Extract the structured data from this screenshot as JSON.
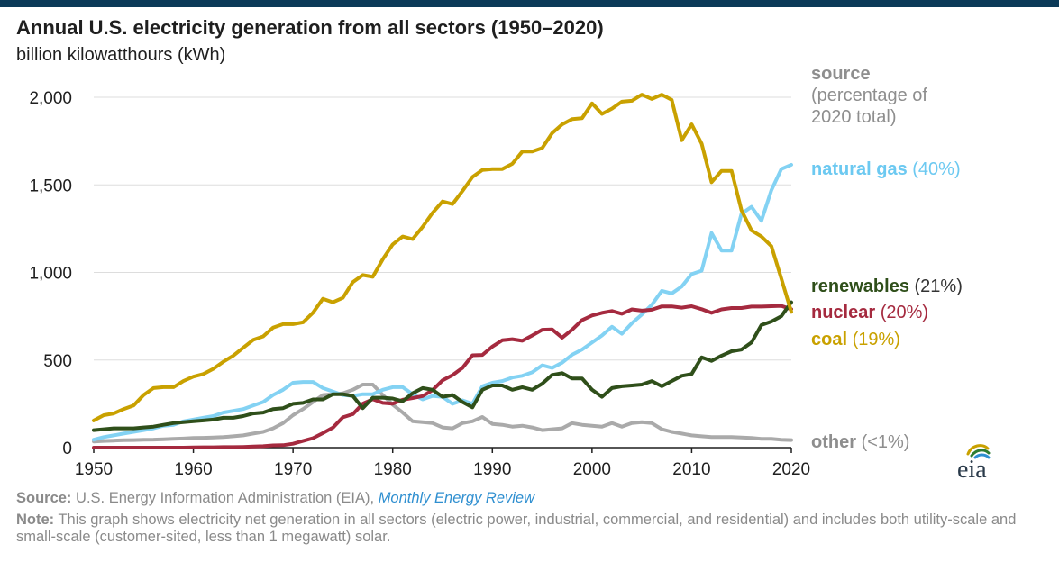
{
  "header": {
    "title": "Annual U.S. electricity generation from all sectors (1950–2020)",
    "subtitle": "billion kilowatthours (kWh)"
  },
  "footer": {
    "source_label": "Source:",
    "source_text": "U.S. Energy Information Administration (EIA),",
    "source_link": "Monthly Energy Review",
    "note_label": "Note:",
    "note_text": "This graph shows electricity net generation in all sectors (electric power, industrial, commercial, and residential) and includes both utility-scale and small-scale (customer-sited, less than 1 megawatt) solar."
  },
  "logo": {
    "text": "eia"
  },
  "chart_data": {
    "type": "line",
    "title": "Annual U.S. electricity generation from all sectors (1950–2020)",
    "ylabel": "billion kilowatthours (kWh)",
    "xlabel": "",
    "xlim": [
      1950,
      2020
    ],
    "ylim": [
      0,
      2000
    ],
    "x_ticks": [
      "1950",
      "1960",
      "1970",
      "1980",
      "1990",
      "2000",
      "2010",
      "2020"
    ],
    "y_ticks": [
      "0",
      "500",
      "1,000",
      "1,500",
      "2,000"
    ],
    "grid": "horizontal",
    "legend": {
      "header_bold": "source",
      "header_line1": "(percentage of",
      "header_line2": "2020 total)"
    },
    "x": [
      1950,
      1951,
      1952,
      1953,
      1954,
      1955,
      1956,
      1957,
      1958,
      1959,
      1960,
      1961,
      1962,
      1963,
      1964,
      1965,
      1966,
      1967,
      1968,
      1969,
      1970,
      1971,
      1972,
      1973,
      1974,
      1975,
      1976,
      1977,
      1978,
      1979,
      1980,
      1981,
      1982,
      1983,
      1984,
      1985,
      1986,
      1987,
      1988,
      1989,
      1990,
      1991,
      1992,
      1993,
      1994,
      1995,
      1996,
      1997,
      1998,
      1999,
      2000,
      2001,
      2002,
      2003,
      2004,
      2005,
      2006,
      2007,
      2008,
      2009,
      2010,
      2011,
      2012,
      2013,
      2014,
      2015,
      2016,
      2017,
      2018,
      2019,
      2020
    ],
    "series": [
      {
        "name": "coal",
        "pct": "(19%)",
        "color": "#c9a100",
        "label_color": "#c9a100",
        "pct_color": "#c9a100",
        "values": [
          155,
          185,
          195,
          220,
          240,
          300,
          340,
          345,
          345,
          380,
          405,
          420,
          450,
          490,
          525,
          570,
          615,
          635,
          685,
          705,
          705,
          715,
          770,
          850,
          830,
          855,
          945,
          985,
          975,
          1075,
          1160,
          1205,
          1190,
          1260,
          1340,
          1405,
          1390,
          1465,
          1545,
          1585,
          1590,
          1590,
          1620,
          1690,
          1690,
          1710,
          1795,
          1845,
          1875,
          1880,
          1965,
          1905,
          1935,
          1975,
          1980,
          2015,
          1990,
          2015,
          1985,
          1755,
          1845,
          1735,
          1515,
          1580,
          1580,
          1355,
          1240,
          1205,
          1150,
          965,
          775
        ]
      },
      {
        "name": "natural gas",
        "pct": "(40%)",
        "color": "#83d2f3",
        "label_color": "#6cc9f1",
        "pct_color": "#6cc9f1",
        "values": [
          45,
          60,
          70,
          80,
          90,
          100,
          110,
          125,
          130,
          150,
          160,
          170,
          180,
          200,
          210,
          220,
          240,
          260,
          300,
          330,
          370,
          375,
          375,
          340,
          320,
          300,
          295,
          305,
          305,
          330,
          345,
          345,
          305,
          275,
          295,
          290,
          250,
          270,
          250,
          350,
          370,
          380,
          400,
          410,
          430,
          470,
          455,
          485,
          530,
          560,
          600,
          640,
          690,
          650,
          710,
          760,
          815,
          895,
          880,
          920,
          990,
          1010,
          1225,
          1125,
          1125,
          1335,
          1375,
          1295,
          1470,
          1590,
          1615
        ]
      },
      {
        "name": "renewables",
        "pct": "(21%)",
        "color": "#2f4f1a",
        "label_color": "#2f4f1a",
        "pct_color": "#333333",
        "values": [
          100,
          105,
          110,
          110,
          110,
          115,
          120,
          130,
          140,
          145,
          150,
          155,
          160,
          170,
          170,
          180,
          195,
          200,
          220,
          225,
          250,
          255,
          275,
          275,
          305,
          305,
          295,
          225,
          285,
          285,
          280,
          265,
          310,
          340,
          330,
          290,
          300,
          260,
          230,
          330,
          355,
          355,
          330,
          345,
          330,
          365,
          415,
          425,
          395,
          395,
          330,
          290,
          340,
          350,
          355,
          360,
          380,
          350,
          380,
          410,
          420,
          515,
          495,
          525,
          550,
          560,
          600,
          700,
          720,
          750,
          830
        ]
      },
      {
        "name": "nuclear",
        "pct": "(20%)",
        "color": "#a52a3f",
        "label_color": "#a52a3f",
        "pct_color": "#a52a3f",
        "values": [
          0,
          0,
          0,
          0,
          0,
          0,
          0,
          0,
          0,
          0,
          1,
          2,
          2,
          3,
          3,
          4,
          6,
          8,
          13,
          14,
          22,
          38,
          54,
          83,
          114,
          173,
          191,
          251,
          276,
          255,
          251,
          273,
          283,
          294,
          328,
          384,
          414,
          455,
          527,
          529,
          577,
          613,
          619,
          610,
          640,
          673,
          675,
          628,
          673,
          728,
          754,
          769,
          780,
          764,
          789,
          782,
          787,
          806,
          806,
          799,
          807,
          790,
          769,
          789,
          797,
          797,
          805,
          805,
          807,
          809,
          790
        ]
      },
      {
        "name": "other",
        "pct": "(<1%)",
        "color": "#aaaaaa",
        "label_color": "#8e8e8e",
        "pct_color": "#8e8e8e",
        "values": [
          35,
          38,
          40,
          42,
          43,
          45,
          46,
          48,
          50,
          52,
          55,
          56,
          58,
          60,
          65,
          70,
          80,
          90,
          110,
          140,
          185,
          220,
          260,
          300,
          305,
          310,
          330,
          360,
          360,
          300,
          245,
          200,
          150,
          145,
          140,
          115,
          110,
          140,
          150,
          175,
          135,
          130,
          120,
          125,
          115,
          100,
          105,
          110,
          140,
          130,
          125,
          120,
          140,
          120,
          140,
          145,
          140,
          105,
          90,
          80,
          70,
          65,
          60,
          60,
          60,
          58,
          55,
          50,
          50,
          45,
          43
        ]
      }
    ]
  }
}
